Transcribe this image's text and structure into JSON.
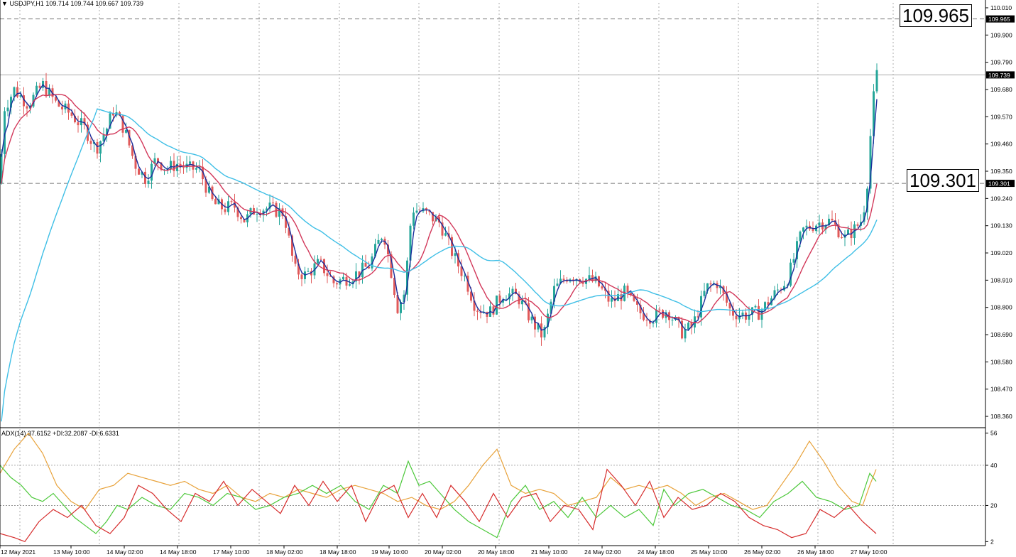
{
  "header": {
    "symbol": "USDJPY,H1",
    "ohlc": "109.714 109.744 109.667 109.739",
    "indicator": "ADX(14) 37.6152 +DI:32.2087 -DI:6.6331"
  },
  "annotations": {
    "upper": "109.965",
    "lower": "109.301"
  },
  "colors": {
    "bull": "#26a69a",
    "bear": "#e05a5a",
    "ma_fast": "#1a2e9c",
    "ma_mid": "#d2385a",
    "ma_slow": "#3fbfe6",
    "adx": "#e8a23a",
    "plus_di": "#4cc83a",
    "minus_di": "#d62b2b",
    "grid": "#9a9a9a"
  },
  "chart_data": [
    {
      "type": "candlestick",
      "title": "USDJPY,H1",
      "x_ticks": [
        "12 May 2021",
        "13 May 10:00",
        "14 May 02:00",
        "14 May 18:00",
        "17 May 10:00",
        "18 May 02:00",
        "18 May 18:00",
        "19 May 10:00",
        "20 May 02:00",
        "20 May 18:00",
        "21 May 10:00",
        "24 May 02:00",
        "24 May 18:00",
        "25 May 10:00",
        "26 May 02:00",
        "26 May 18:00",
        "27 May 10:00"
      ],
      "y_ticks": [
        "110.010",
        "109.900",
        "109.790",
        "109.680",
        "109.570",
        "109.460",
        "109.350",
        "109.240",
        "109.130",
        "109.020",
        "108.910",
        "108.800",
        "108.690",
        "108.580",
        "108.470",
        "108.360"
      ],
      "ylim": [
        108.32,
        110.03
      ],
      "price_labels": [
        "109.965",
        "109.739",
        "109.301"
      ],
      "horizontal_lines": [
        109.965,
        109.739,
        109.301
      ],
      "close_path": [
        [
          0,
          109.3
        ],
        [
          5,
          109.6
        ],
        [
          20,
          109.68
        ],
        [
          40,
          109.62
        ],
        [
          60,
          109.7
        ],
        [
          80,
          109.62
        ],
        [
          100,
          109.58
        ],
        [
          120,
          109.52
        ],
        [
          135,
          109.44
        ],
        [
          150,
          109.52
        ],
        [
          160,
          109.6
        ],
        [
          175,
          109.52
        ],
        [
          190,
          109.38
        ],
        [
          205,
          109.32
        ],
        [
          220,
          109.4
        ],
        [
          235,
          109.36
        ],
        [
          250,
          109.38
        ],
        [
          265,
          109.36
        ],
        [
          280,
          109.36
        ],
        [
          300,
          109.22
        ],
        [
          315,
          109.2
        ],
        [
          330,
          109.21
        ],
        [
          345,
          109.15
        ],
        [
          360,
          109.2
        ],
        [
          380,
          109.2
        ],
        [
          400,
          109.18
        ],
        [
          415,
          108.95
        ],
        [
          430,
          108.93
        ],
        [
          450,
          108.98
        ],
        [
          470,
          108.9
        ],
        [
          490,
          108.92
        ],
        [
          505,
          108.94
        ],
        [
          520,
          108.97
        ],
        [
          540,
          109.11
        ],
        [
          550,
          108.96
        ],
        [
          560,
          108.8
        ],
        [
          570,
          108.86
        ],
        [
          580,
          109.2
        ],
        [
          600,
          109.18
        ],
        [
          620,
          109.14
        ],
        [
          640,
          109.0
        ],
        [
          655,
          108.92
        ],
        [
          670,
          108.8
        ],
        [
          690,
          108.78
        ],
        [
          710,
          108.86
        ],
        [
          730,
          108.84
        ],
        [
          750,
          108.74
        ],
        [
          765,
          108.68
        ],
        [
          780,
          108.87
        ],
        [
          800,
          108.93
        ],
        [
          820,
          108.92
        ],
        [
          840,
          108.9
        ],
        [
          860,
          108.82
        ],
        [
          880,
          108.86
        ],
        [
          900,
          108.78
        ],
        [
          920,
          108.76
        ],
        [
          940,
          108.79
        ],
        [
          960,
          108.7
        ],
        [
          975,
          108.72
        ],
        [
          995,
          108.88
        ],
        [
          1010,
          108.9
        ],
        [
          1030,
          108.78
        ],
        [
          1050,
          108.77
        ],
        [
          1070,
          108.78
        ],
        [
          1090,
          108.85
        ],
        [
          1110,
          108.92
        ],
        [
          1130,
          109.11
        ],
        [
          1150,
          109.14
        ],
        [
          1170,
          109.15
        ],
        [
          1190,
          109.08
        ],
        [
          1205,
          109.12
        ],
        [
          1215,
          109.16
        ],
        [
          1222,
          109.32
        ],
        [
          1228,
          109.58
        ],
        [
          1234,
          109.74
        ]
      ],
      "series": [
        {
          "name": "MA fast",
          "color": "#1a2e9c",
          "smoothing": 3
        },
        {
          "name": "MA mid",
          "color": "#d2385a",
          "smoothing": 10
        },
        {
          "name": "MA slow",
          "color": "#3fbfe6",
          "smoothing": 30
        }
      ]
    },
    {
      "type": "line",
      "title": "ADX(14) 37.6152 +DI:32.2087 -DI:6.6331",
      "y_ticks": [
        "56",
        "40",
        "20",
        "2"
      ],
      "ylim": [
        0,
        58
      ],
      "levels": [
        40,
        20
      ],
      "series": [
        {
          "name": "ADX",
          "color": "#e8a23a",
          "points": [
            [
              0,
              36
            ],
            [
              20,
              48
            ],
            [
              40,
              56
            ],
            [
              60,
              46
            ],
            [
              80,
              30
            ],
            [
              100,
              22
            ],
            [
              120,
              18
            ],
            [
              140,
              28
            ],
            [
              160,
              30
            ],
            [
              180,
              36
            ],
            [
              200,
              34
            ],
            [
              220,
              32
            ],
            [
              240,
              30
            ],
            [
              260,
              32
            ],
            [
              280,
              28
            ],
            [
              300,
              26
            ],
            [
              320,
              30
            ],
            [
              340,
              24
            ],
            [
              360,
              22
            ],
            [
              380,
              26
            ],
            [
              400,
              24
            ],
            [
              420,
              28
            ],
            [
              440,
              26
            ],
            [
              460,
              24
            ],
            [
              480,
              28
            ],
            [
              500,
              30
            ],
            [
              520,
              28
            ],
            [
              540,
              26
            ],
            [
              560,
              22
            ],
            [
              580,
              24
            ],
            [
              600,
              20
            ],
            [
              620,
              18
            ],
            [
              640,
              22
            ],
            [
              660,
              30
            ],
            [
              680,
              40
            ],
            [
              700,
              48
            ],
            [
              720,
              30
            ],
            [
              740,
              26
            ],
            [
              760,
              28
            ],
            [
              780,
              26
            ],
            [
              800,
              20
            ],
            [
              820,
              22
            ],
            [
              840,
              24
            ],
            [
              860,
              34
            ],
            [
              880,
              28
            ],
            [
              900,
              30
            ],
            [
              920,
              28
            ],
            [
              940,
              30
            ],
            [
              960,
              26
            ],
            [
              980,
              20
            ],
            [
              1000,
              24
            ],
            [
              1020,
              26
            ],
            [
              1040,
              22
            ],
            [
              1060,
              18
            ],
            [
              1080,
              20
            ],
            [
              1100,
              30
            ],
            [
              1120,
              40
            ],
            [
              1140,
              52
            ],
            [
              1160,
              42
            ],
            [
              1180,
              30
            ],
            [
              1200,
              22
            ],
            [
              1215,
              20
            ],
            [
              1225,
              30
            ],
            [
              1234,
              38
            ]
          ]
        },
        {
          "name": "+DI",
          "color": "#4cc83a",
          "points": [
            [
              0,
              40
            ],
            [
              15,
              34
            ],
            [
              30,
              30
            ],
            [
              45,
              24
            ],
            [
              60,
              22
            ],
            [
              75,
              26
            ],
            [
              90,
              20
            ],
            [
              105,
              14
            ],
            [
              120,
              10
            ],
            [
              135,
              6
            ],
            [
              150,
              12
            ],
            [
              165,
              20
            ],
            [
              180,
              18
            ],
            [
              200,
              24
            ],
            [
              220,
              20
            ],
            [
              240,
              18
            ],
            [
              260,
              26
            ],
            [
              280,
              24
            ],
            [
              300,
              20
            ],
            [
              320,
              26
            ],
            [
              340,
              24
            ],
            [
              360,
              18
            ],
            [
              380,
              20
            ],
            [
              400,
              24
            ],
            [
              420,
              26
            ],
            [
              440,
              30
            ],
            [
              460,
              26
            ],
            [
              480,
              30
            ],
            [
              500,
              22
            ],
            [
              520,
              18
            ],
            [
              540,
              30
            ],
            [
              560,
              26
            ],
            [
              575,
              42
            ],
            [
              590,
              30
            ],
            [
              605,
              32
            ],
            [
              620,
              26
            ],
            [
              640,
              18
            ],
            [
              660,
              12
            ],
            [
              680,
              8
            ],
            [
              700,
              4
            ],
            [
              720,
              22
            ],
            [
              740,
              30
            ],
            [
              760,
              18
            ],
            [
              780,
              22
            ],
            [
              800,
              14
            ],
            [
              820,
              24
            ],
            [
              840,
              14
            ],
            [
              860,
              20
            ],
            [
              880,
              14
            ],
            [
              900,
              18
            ],
            [
              920,
              10
            ],
            [
              935,
              28
            ],
            [
              950,
              20
            ],
            [
              970,
              26
            ],
            [
              990,
              28
            ],
            [
              1010,
              24
            ],
            [
              1030,
              20
            ],
            [
              1050,
              18
            ],
            [
              1070,
              14
            ],
            [
              1090,
              22
            ],
            [
              1110,
              26
            ],
            [
              1130,
              32
            ],
            [
              1150,
              24
            ],
            [
              1170,
              22
            ],
            [
              1190,
              18
            ],
            [
              1210,
              20
            ],
            [
              1225,
              36
            ],
            [
              1234,
              32
            ]
          ]
        },
        {
          "name": "-DI",
          "color": "#d62b2b",
          "points": [
            [
              0,
              6
            ],
            [
              20,
              4
            ],
            [
              35,
              2
            ],
            [
              55,
              12
            ],
            [
              75,
              18
            ],
            [
              95,
              14
            ],
            [
              115,
              20
            ],
            [
              135,
              10
            ],
            [
              155,
              6
            ],
            [
              175,
              14
            ],
            [
              195,
              30
            ],
            [
              215,
              26
            ],
            [
              235,
              18
            ],
            [
              255,
              12
            ],
            [
              275,
              26
            ],
            [
              295,
              22
            ],
            [
              315,
              32
            ],
            [
              335,
              20
            ],
            [
              355,
              28
            ],
            [
              375,
              22
            ],
            [
              395,
              16
            ],
            [
              415,
              30
            ],
            [
              435,
              20
            ],
            [
              455,
              32
            ],
            [
              475,
              22
            ],
            [
              495,
              30
            ],
            [
              515,
              12
            ],
            [
              535,
              26
            ],
            [
              555,
              30
            ],
            [
              575,
              14
            ],
            [
              595,
              26
            ],
            [
              615,
              14
            ],
            [
              635,
              30
            ],
            [
              655,
              22
            ],
            [
              675,
              12
            ],
            [
              695,
              26
            ],
            [
              715,
              14
            ],
            [
              735,
              24
            ],
            [
              755,
              26
            ],
            [
              775,
              12
            ],
            [
              795,
              20
            ],
            [
              815,
              18
            ],
            [
              835,
              8
            ],
            [
              855,
              38
            ],
            [
              875,
              30
            ],
            [
              895,
              20
            ],
            [
              915,
              32
            ],
            [
              935,
              14
            ],
            [
              955,
              24
            ],
            [
              975,
              18
            ],
            [
              995,
              20
            ],
            [
              1015,
              26
            ],
            [
              1035,
              22
            ],
            [
              1055,
              14
            ],
            [
              1075,
              10
            ],
            [
              1095,
              8
            ],
            [
              1115,
              4
            ],
            [
              1135,
              6
            ],
            [
              1155,
              18
            ],
            [
              1175,
              14
            ],
            [
              1195,
              20
            ],
            [
              1215,
              12
            ],
            [
              1234,
              6
            ]
          ]
        }
      ]
    }
  ]
}
